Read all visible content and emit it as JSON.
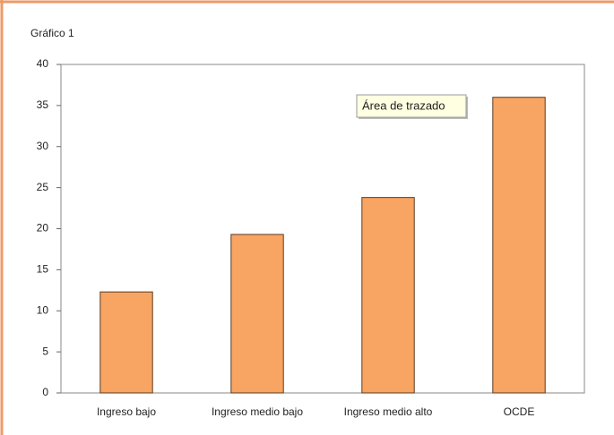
{
  "chart_data": {
    "type": "bar",
    "title": "Gráfico 1",
    "categories": [
      "Ingreso bajo",
      "Ingreso medio bajo",
      "Ingreso medio alto",
      "OCDE"
    ],
    "values": [
      12.3,
      19.3,
      23.8,
      36
    ],
    "color": "#f8a462",
    "ylim": [
      0,
      40
    ],
    "yticks": [
      0,
      5,
      10,
      15,
      20,
      25,
      30,
      35,
      40
    ],
    "grid": false,
    "tooltip": "Área de trazado"
  }
}
